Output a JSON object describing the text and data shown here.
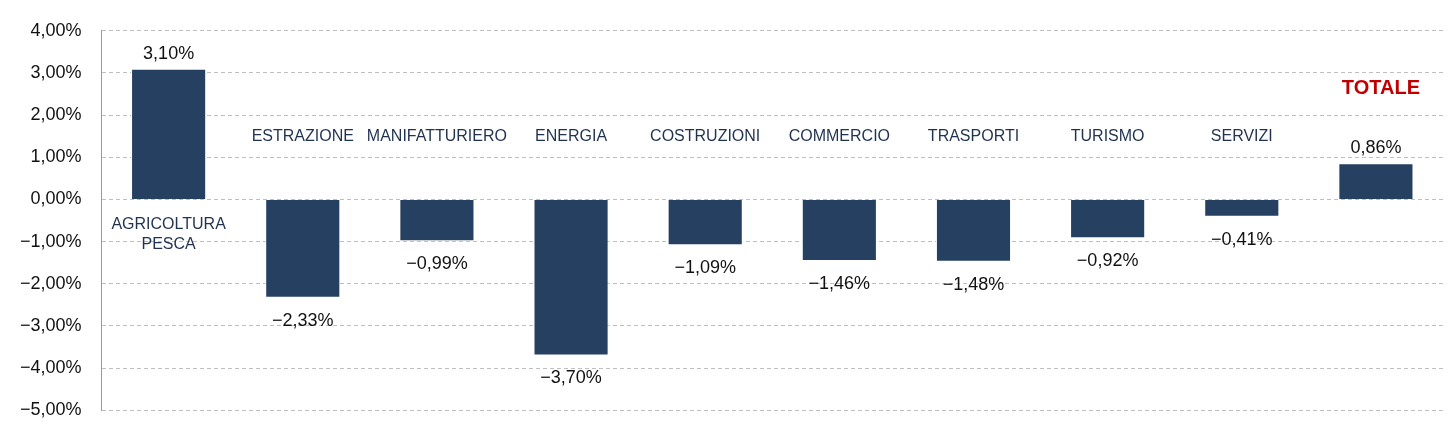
{
  "chart_data": {
    "type": "bar",
    "categories": [
      [
        "AGRICOLTURA",
        "PESCA"
      ],
      "ESTRAZIONE",
      "MANIFATTURIERO",
      "ENERGIA",
      "COSTRUZIONI",
      "COMMERCIO",
      "TRASPORTI",
      "TURISMO",
      "SERVIZI",
      "TOTALE"
    ],
    "values": [
      3.1,
      -2.33,
      -0.99,
      -3.7,
      -1.09,
      -1.46,
      -1.48,
      -0.92,
      -0.41,
      0.86
    ],
    "value_labels": [
      "3,10%",
      "−2,33%",
      "−0,99%",
      "−3,70%",
      "−1,09%",
      "−1,46%",
      "−1,48%",
      "−0,92%",
      "−0,41%",
      "0,86%"
    ],
    "color": "#264061",
    "ylim": [
      -5,
      4
    ],
    "yticks": [
      {
        "value": 4,
        "label": "4,00%"
      },
      {
        "value": 3,
        "label": "3,00%"
      },
      {
        "value": 2,
        "label": "2,00%"
      },
      {
        "value": 1,
        "label": "1,00%"
      },
      {
        "value": 0,
        "label": "0,00%"
      },
      {
        "value": -1,
        "label": "−1,00%"
      },
      {
        "value": -2,
        "label": "−2,00%"
      },
      {
        "value": -3,
        "label": "−3,00%"
      },
      {
        "value": -4,
        "label": "−4,00%"
      },
      {
        "value": -5,
        "label": "−5,00%"
      }
    ],
    "grid": "y",
    "legend": false
  }
}
